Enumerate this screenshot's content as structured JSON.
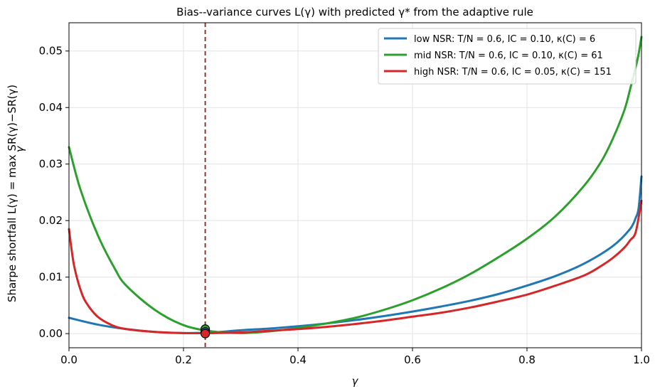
{
  "chart_data": {
    "type": "line",
    "title": "Bias--variance curves L(γ) with predicted γ* from the adaptive rule",
    "xlabel": "γ",
    "ylabel": "Sharpe shortfall  L(γ) = max SR(γ)−SR(γ)",
    "ylabel_sub": "γ",
    "xlim": [
      0.0,
      1.0
    ],
    "ylim": [
      -0.0025,
      0.055
    ],
    "xticks": [
      0.0,
      0.2,
      0.4,
      0.6,
      0.8,
      1.0
    ],
    "xtick_labels": [
      "0.0",
      "0.2",
      "0.4",
      "0.6",
      "0.8",
      "1.0"
    ],
    "yticks": [
      0.0,
      0.01,
      0.02,
      0.03,
      0.04,
      0.05
    ],
    "ytick_labels": [
      "0.00",
      "0.01",
      "0.02",
      "0.03",
      "0.04",
      "0.05"
    ],
    "grid": true,
    "legend_position": "top-right",
    "vline": {
      "x": 0.238,
      "color": "#8b3a2f",
      "style": "dashed"
    },
    "markers": [
      {
        "series": "mid NSR",
        "x": 0.238,
        "y": 0.0008,
        "color": "#2ca02c"
      },
      {
        "series": "low NSR",
        "x": 0.238,
        "y": 0.0003,
        "color": "#1f77b4"
      },
      {
        "series": "high NSR",
        "x": 0.238,
        "y": 0.0,
        "color": "#d62728"
      }
    ],
    "series": [
      {
        "name": "low NSR: T/N = 0.6, IC = 0.10, κ(C) = 6",
        "color": "#1f77b4",
        "x": [
          0.0,
          0.05,
          0.1,
          0.15,
          0.2,
          0.25,
          0.3,
          0.35,
          0.4,
          0.45,
          0.5,
          0.55,
          0.6,
          0.65,
          0.7,
          0.75,
          0.8,
          0.85,
          0.9,
          0.95,
          0.98,
          0.99,
          0.995,
          1.0
        ],
        "values": [
          0.0028,
          0.0016,
          0.0008,
          0.0003,
          0.0001,
          0.0002,
          0.0006,
          0.0009,
          0.0013,
          0.0018,
          0.0024,
          0.0031,
          0.0039,
          0.0048,
          0.0058,
          0.007,
          0.0085,
          0.0102,
          0.0124,
          0.0155,
          0.0185,
          0.0205,
          0.0222,
          0.0278
        ]
      },
      {
        "name": "mid NSR: T/N = 0.6, IC = 0.10, κ(C) = 61",
        "color": "#2ca02c",
        "x": [
          0.0,
          0.02,
          0.05,
          0.08,
          0.1,
          0.15,
          0.2,
          0.25,
          0.3,
          0.35,
          0.4,
          0.45,
          0.5,
          0.55,
          0.6,
          0.65,
          0.7,
          0.75,
          0.8,
          0.85,
          0.9,
          0.93,
          0.95,
          0.97,
          0.98,
          0.99,
          0.995,
          1.0
        ],
        "values": [
          0.033,
          0.0255,
          0.0175,
          0.0115,
          0.0085,
          0.0042,
          0.0015,
          0.0004,
          0.0001,
          0.0004,
          0.001,
          0.0018,
          0.0028,
          0.0042,
          0.0059,
          0.008,
          0.0105,
          0.0135,
          0.0168,
          0.0208,
          0.0262,
          0.0305,
          0.0345,
          0.0395,
          0.0432,
          0.0472,
          0.0495,
          0.0525
        ]
      },
      {
        "name": "high NSR: T/N = 0.6, IC = 0.05, κ(C) = 151",
        "color": "#d62728",
        "x": [
          0.0,
          0.005,
          0.01,
          0.02,
          0.03,
          0.05,
          0.075,
          0.1,
          0.15,
          0.2,
          0.25,
          0.3,
          0.35,
          0.4,
          0.45,
          0.5,
          0.55,
          0.6,
          0.65,
          0.7,
          0.75,
          0.8,
          0.85,
          0.9,
          0.93,
          0.95,
          0.97,
          0.98,
          0.99,
          1.0
        ],
        "values": [
          0.0185,
          0.0145,
          0.0115,
          0.0078,
          0.0055,
          0.003,
          0.0015,
          0.0008,
          0.0003,
          0.0001,
          0.0001,
          0.0002,
          0.0005,
          0.0008,
          0.0012,
          0.0017,
          0.0023,
          0.003,
          0.0037,
          0.0046,
          0.0057,
          0.0069,
          0.0085,
          0.0103,
          0.012,
          0.0134,
          0.0152,
          0.0165,
          0.018,
          0.0235
        ]
      }
    ]
  }
}
